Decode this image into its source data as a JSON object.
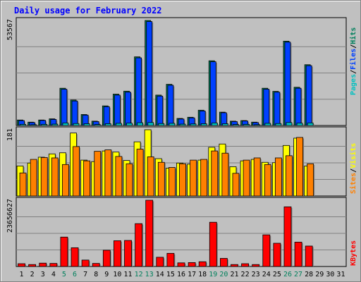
{
  "chart_data": {
    "type": "bar",
    "title": "Daily usage for February 2022",
    "categories": [
      "1",
      "2",
      "3",
      "4",
      "5",
      "6",
      "7",
      "8",
      "9",
      "10",
      "11",
      "12",
      "13",
      "14",
      "15",
      "16",
      "17",
      "18",
      "19",
      "20",
      "21",
      "22",
      "23",
      "24",
      "25",
      "26",
      "27",
      "28",
      "29",
      "30",
      "31"
    ],
    "weekend_days": [
      "5",
      "6",
      "12",
      "13",
      "19",
      "20",
      "26",
      "27"
    ],
    "panels": [
      {
        "name": "hits-files-pages",
        "axis_max_label": "53567",
        "ymax": 53567,
        "series": [
          {
            "name": "Hits",
            "color": "#00805c",
            "values": [
              2800,
              1700,
              2800,
              3400,
              19000,
              13000,
              5600,
              2200,
              10000,
              16000,
              17500,
              35000,
              53567,
              15500,
              21000,
              3600,
              4200,
              7800,
              33000,
              6800,
              2200,
              2500,
              1700,
              19000,
              17400,
              43000,
              19500,
              31000,
              0,
              0,
              0
            ]
          },
          {
            "name": "Files",
            "color": "#0040ff",
            "values": [
              2500,
              1500,
              2600,
              3100,
              18500,
              12500,
              5300,
              2000,
              9600,
              15500,
              17000,
              34500,
              53000,
              15000,
              20500,
              3300,
              3900,
              7400,
              32500,
              6500,
              2000,
              2300,
              1500,
              18500,
              17000,
              42500,
              19000,
              30500,
              0,
              0,
              0
            ]
          },
          {
            "name": "Pages",
            "color": "#00c0c0",
            "values": [
              600,
              400,
              600,
              700,
              1300,
              1000,
              900,
              500,
              900,
              1100,
              1200,
              1400,
              1500,
              1000,
              1100,
              700,
              800,
              900,
              1300,
              900,
              500,
              600,
              400,
              1100,
              1000,
              1500,
              1200,
              1300,
              0,
              0,
              0
            ]
          }
        ]
      },
      {
        "name": "visits-sites",
        "axis_max_label": "181",
        "ymax": 181,
        "series": [
          {
            "name": "Visits",
            "color": "#ffff00",
            "values": [
              82,
              90,
              106,
              115,
              118,
              172,
              98,
              94,
              123,
              120,
              97,
              148,
              181,
              102,
              76,
              90,
              87,
              98,
              133,
              142,
              80,
              96,
              100,
              92,
              91,
              138,
              158,
              82,
              0,
              0,
              0
            ]
          },
          {
            "name": "Sites",
            "color": "#ff8000",
            "values": [
              63,
              100,
              105,
              104,
              86,
              135,
              96,
              122,
              126,
              108,
              88,
              128,
              107,
              92,
              78,
              88,
              98,
              100,
              123,
              117,
              62,
              98,
              104,
              86,
              104,
              110,
              160,
              88,
              0,
              0,
              0
            ]
          }
        ]
      },
      {
        "name": "kbytes",
        "axis_max_label": "23656627",
        "ymax": 23656627,
        "series": [
          {
            "name": "KBytes",
            "color": "#ff0000",
            "values": [
              1000000,
              700000,
              1200000,
              1100000,
              10500000,
              6700000,
              2300000,
              1100000,
              5800000,
              9200000,
              9300000,
              15300000,
              23656627,
              3300000,
              4700000,
              1300000,
              1400000,
              1700000,
              15800000,
              2900000,
              700000,
              1000000,
              700000,
              11300000,
              8300000,
              21300000,
              8700000,
              7300000,
              0,
              0,
              0
            ]
          }
        ]
      }
    ],
    "legend": {
      "top": [
        "Pages",
        "Files",
        "Hits"
      ],
      "middle": [
        "Sites",
        "Visits"
      ],
      "bottom": [
        "KBytes"
      ],
      "separator": "/"
    },
    "colors": {
      "title": "#0000ff",
      "weekday_label": "#000000",
      "weekend_label": "#00805c",
      "panel_bg": "#c0c0c0",
      "gridline": "#808080",
      "bar_outline": "#000000"
    }
  }
}
